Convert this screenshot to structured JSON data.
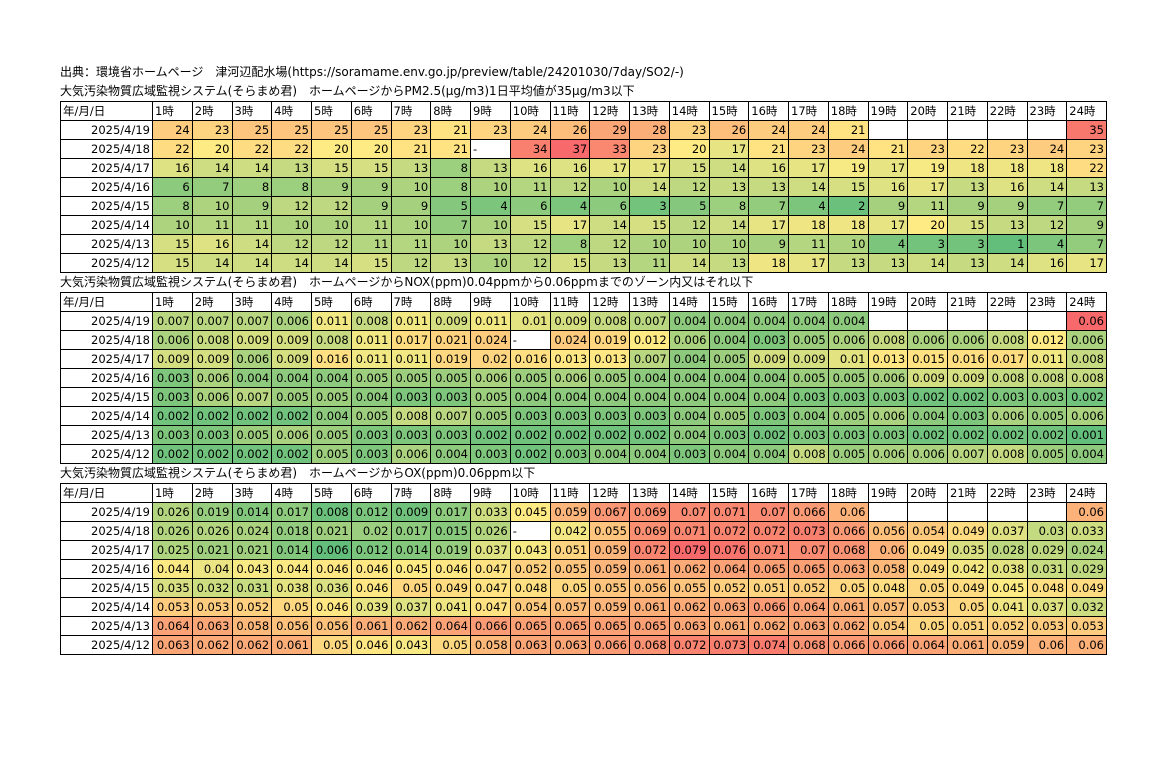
{
  "source_line": "出典：環境省ホームページ　津河辺配水場(https://soramame.env.go.jp/preview/table/24201030/7day/SO2/-)",
  "hours": [
    "1時",
    "2時",
    "3時",
    "4時",
    "5時",
    "6時",
    "7時",
    "8時",
    "9時",
    "10時",
    "11時",
    "12時",
    "13時",
    "14時",
    "15時",
    "16時",
    "17時",
    "18時",
    "19時",
    "20時",
    "21時",
    "22時",
    "23時",
    "24時"
  ],
  "dates": [
    "2025/4/19",
    "2025/4/18",
    "2025/4/17",
    "2025/4/16",
    "2025/4/15",
    "2025/4/14",
    "2025/4/13",
    "2025/4/12"
  ],
  "sections": [
    {
      "caption": "大気汚染物質広域監視システム(そらまめ君)　ホームページからPM2.5(μg/m3)1日平均値が35μg/m3以下",
      "header_label": "年/月/日",
      "min": 1,
      "max": 37,
      "mid": 20,
      "rows": [
        [
          "24",
          "23",
          "25",
          "25",
          "25",
          "25",
          "23",
          "21",
          "23",
          "24",
          "26",
          "29",
          "28",
          "23",
          "26",
          "24",
          "24",
          "21",
          "",
          "",
          "",
          "",
          "",
          "35"
        ],
        [
          "22",
          "20",
          "22",
          "22",
          "20",
          "20",
          "21",
          "21",
          "-",
          "34",
          "37",
          "33",
          "23",
          "20",
          "17",
          "21",
          "23",
          "24",
          "21",
          "23",
          "22",
          "23",
          "24",
          "23"
        ],
        [
          "16",
          "14",
          "14",
          "13",
          "15",
          "15",
          "13",
          "8",
          "13",
          "16",
          "16",
          "17",
          "17",
          "15",
          "14",
          "16",
          "17",
          "19",
          "17",
          "19",
          "18",
          "18",
          "18",
          "22"
        ],
        [
          "6",
          "7",
          "8",
          "8",
          "9",
          "9",
          "10",
          "8",
          "10",
          "11",
          "12",
          "10",
          "14",
          "12",
          "13",
          "13",
          "14",
          "15",
          "16",
          "17",
          "13",
          "16",
          "14",
          "13"
        ],
        [
          "8",
          "10",
          "9",
          "12",
          "12",
          "9",
          "9",
          "5",
          "4",
          "6",
          "4",
          "6",
          "3",
          "5",
          "8",
          "7",
          "4",
          "2",
          "9",
          "11",
          "9",
          "9",
          "7",
          "7"
        ],
        [
          "10",
          "11",
          "11",
          "10",
          "10",
          "11",
          "10",
          "7",
          "10",
          "15",
          "17",
          "14",
          "15",
          "12",
          "14",
          "17",
          "18",
          "18",
          "17",
          "20",
          "15",
          "13",
          "12",
          "9"
        ],
        [
          "15",
          "16",
          "14",
          "12",
          "12",
          "11",
          "11",
          "10",
          "13",
          "12",
          "8",
          "12",
          "10",
          "10",
          "10",
          "9",
          "11",
          "10",
          "4",
          "3",
          "3",
          "1",
          "4",
          "7"
        ],
        [
          "15",
          "14",
          "14",
          "14",
          "14",
          "15",
          "12",
          "13",
          "10",
          "12",
          "15",
          "13",
          "11",
          "14",
          "13",
          "18",
          "17",
          "13",
          "13",
          "14",
          "13",
          "14",
          "16",
          "17"
        ]
      ]
    },
    {
      "caption": "大気汚染物質広域監視システム(そらまめ君)　ホームページからNOX(ppm)0.04ppmから0.06ppmまでのゾーン内又はそれ以下",
      "header_label": "年/月/日",
      "min": 0.001,
      "max": 0.06,
      "mid": 0.012,
      "rows": [
        [
          "0.007",
          "0.007",
          "0.007",
          "0.006",
          "0.011",
          "0.008",
          "0.011",
          "0.009",
          "0.011",
          "0.01",
          "0.009",
          "0.008",
          "0.007",
          "0.004",
          "0.004",
          "0.004",
          "0.004",
          "0.004",
          "",
          "",
          "",
          "",
          "",
          "0.06"
        ],
        [
          "0.006",
          "0.008",
          "0.009",
          "0.009",
          "0.008",
          "0.011",
          "0.017",
          "0.021",
          "0.024",
          "-",
          "0.024",
          "0.019",
          "0.012",
          "0.006",
          "0.004",
          "0.003",
          "0.005",
          "0.006",
          "0.008",
          "0.006",
          "0.006",
          "0.008",
          "0.012",
          "0.006"
        ],
        [
          "0.009",
          "0.009",
          "0.006",
          "0.009",
          "0.016",
          "0.011",
          "0.011",
          "0.019",
          "0.02",
          "0.016",
          "0.013",
          "0.013",
          "0.007",
          "0.004",
          "0.005",
          "0.009",
          "0.009",
          "0.01",
          "0.013",
          "0.015",
          "0.016",
          "0.017",
          "0.011",
          "0.008"
        ],
        [
          "0.003",
          "0.006",
          "0.004",
          "0.004",
          "0.004",
          "0.005",
          "0.005",
          "0.005",
          "0.006",
          "0.005",
          "0.006",
          "0.005",
          "0.004",
          "0.004",
          "0.004",
          "0.004",
          "0.005",
          "0.005",
          "0.006",
          "0.009",
          "0.009",
          "0.008",
          "0.008",
          "0.008"
        ],
        [
          "0.003",
          "0.006",
          "0.007",
          "0.005",
          "0.005",
          "0.004",
          "0.003",
          "0.003",
          "0.005",
          "0.004",
          "0.004",
          "0.004",
          "0.004",
          "0.004",
          "0.004",
          "0.004",
          "0.003",
          "0.003",
          "0.003",
          "0.002",
          "0.002",
          "0.003",
          "0.003",
          "0.002"
        ],
        [
          "0.002",
          "0.002",
          "0.002",
          "0.002",
          "0.004",
          "0.005",
          "0.008",
          "0.007",
          "0.005",
          "0.003",
          "0.003",
          "0.003",
          "0.003",
          "0.004",
          "0.005",
          "0.003",
          "0.004",
          "0.005",
          "0.006",
          "0.004",
          "0.003",
          "0.006",
          "0.005",
          "0.006"
        ],
        [
          "0.003",
          "0.003",
          "0.005",
          "0.006",
          "0.005",
          "0.003",
          "0.003",
          "0.003",
          "0.002",
          "0.002",
          "0.002",
          "0.002",
          "0.002",
          "0.004",
          "0.003",
          "0.002",
          "0.003",
          "0.003",
          "0.003",
          "0.002",
          "0.002",
          "0.002",
          "0.002",
          "0.001"
        ],
        [
          "0.002",
          "0.002",
          "0.002",
          "0.002",
          "0.005",
          "0.003",
          "0.006",
          "0.004",
          "0.003",
          "0.002",
          "0.003",
          "0.004",
          "0.004",
          "0.003",
          "0.004",
          "0.004",
          "0.008",
          "0.005",
          "0.006",
          "0.006",
          "0.007",
          "0.008",
          "0.005",
          "0.004"
        ]
      ]
    },
    {
      "caption": "大気汚染物質広域監視システム(そらまめ君)　ホームページからOX(ppm)0.06ppm以下",
      "header_label": "年/月/日",
      "min": 0.006,
      "max": 0.079,
      "mid": 0.045,
      "rows": [
        [
          "0.026",
          "0.019",
          "0.014",
          "0.017",
          "0.008",
          "0.012",
          "0.009",
          "0.017",
          "0.033",
          "0.045",
          "0.059",
          "0.067",
          "0.069",
          "0.07",
          "0.071",
          "0.07",
          "0.066",
          "0.06",
          "",
          "",
          "",
          "",
          "",
          "0.06"
        ],
        [
          "0.026",
          "0.026",
          "0.024",
          "0.018",
          "0.021",
          "0.02",
          "0.017",
          "0.015",
          "0.026",
          "-",
          "0.042",
          "0.055",
          "0.069",
          "0.071",
          "0.072",
          "0.072",
          "0.073",
          "0.066",
          "0.056",
          "0.054",
          "0.049",
          "0.037",
          "0.03",
          "0.033"
        ],
        [
          "0.025",
          "0.021",
          "0.021",
          "0.014",
          "0.006",
          "0.012",
          "0.014",
          "0.019",
          "0.037",
          "0.043",
          "0.051",
          "0.059",
          "0.072",
          "0.079",
          "0.076",
          "0.071",
          "0.07",
          "0.068",
          "0.06",
          "0.049",
          "0.035",
          "0.028",
          "0.029",
          "0.024"
        ],
        [
          "0.044",
          "0.04",
          "0.043",
          "0.044",
          "0.046",
          "0.046",
          "0.045",
          "0.046",
          "0.047",
          "0.052",
          "0.055",
          "0.059",
          "0.061",
          "0.062",
          "0.064",
          "0.065",
          "0.065",
          "0.063",
          "0.058",
          "0.049",
          "0.042",
          "0.038",
          "0.031",
          "0.029"
        ],
        [
          "0.035",
          "0.032",
          "0.031",
          "0.038",
          "0.036",
          "0.046",
          "0.05",
          "0.049",
          "0.047",
          "0.048",
          "0.05",
          "0.055",
          "0.056",
          "0.055",
          "0.052",
          "0.051",
          "0.052",
          "0.05",
          "0.048",
          "0.05",
          "0.049",
          "0.045",
          "0.048",
          "0.049"
        ],
        [
          "0.053",
          "0.053",
          "0.052",
          "0.05",
          "0.046",
          "0.039",
          "0.037",
          "0.041",
          "0.047",
          "0.054",
          "0.057",
          "0.059",
          "0.061",
          "0.062",
          "0.063",
          "0.066",
          "0.064",
          "0.061",
          "0.057",
          "0.053",
          "0.05",
          "0.041",
          "0.037",
          "0.032"
        ],
        [
          "0.064",
          "0.063",
          "0.058",
          "0.056",
          "0.056",
          "0.061",
          "0.062",
          "0.064",
          "0.066",
          "0.065",
          "0.065",
          "0.065",
          "0.065",
          "0.063",
          "0.061",
          "0.062",
          "0.063",
          "0.062",
          "0.054",
          "0.05",
          "0.051",
          "0.052",
          "0.053",
          "0.053"
        ],
        [
          "0.063",
          "0.062",
          "0.062",
          "0.061",
          "0.05",
          "0.046",
          "0.043",
          "0.05",
          "0.058",
          "0.063",
          "0.063",
          "0.066",
          "0.068",
          "0.072",
          "0.073",
          "0.074",
          "0.068",
          "0.066",
          "0.066",
          "0.064",
          "0.061",
          "0.059",
          "0.06",
          "0.06"
        ]
      ]
    }
  ]
}
